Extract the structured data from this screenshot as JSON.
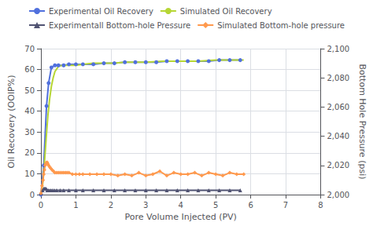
{
  "chart_data": {
    "type": "line",
    "xlabel": "Pore Volume Injected (PV)",
    "ylabel": "Oil Recovery (OOIP%)",
    "y2label": "Bottom Hole Pressure (psi)",
    "xlim": [
      0,
      8
    ],
    "ylim": [
      0,
      70
    ],
    "y2lim": [
      2000,
      2100
    ],
    "xticks": [
      0,
      1,
      2,
      3,
      4,
      5,
      6,
      7,
      8
    ],
    "yticks": [
      0,
      10,
      20,
      30,
      40,
      50,
      60,
      70
    ],
    "y2ticks": [
      2000,
      2020,
      2040,
      2060,
      2080,
      2100
    ],
    "grid": true,
    "legend": "top",
    "series": [
      {
        "name": "Experimental Oil Recovery",
        "marker": "circle",
        "x": [
          0.0,
          0.08,
          0.16,
          0.22,
          0.3,
          0.4,
          0.5,
          0.65,
          0.8,
          1.0,
          1.2,
          1.5,
          1.8,
          2.1,
          2.4,
          2.7,
          3.0,
          3.3,
          3.6,
          3.9,
          4.2,
          4.5,
          4.8,
          5.1,
          5.4,
          5.7
        ],
        "values": [
          0.0,
          14.0,
          42.5,
          53.5,
          61.0,
          62.0,
          62.0,
          62.0,
          62.5,
          62.5,
          62.5,
          62.5,
          63.0,
          63.0,
          63.5,
          63.5,
          63.5,
          63.5,
          64.0,
          64.0,
          64.0,
          64.0,
          64.0,
          64.5,
          64.5,
          64.5
        ]
      },
      {
        "name": "Simulated Oil Recovery",
        "marker": "none",
        "x": [
          0.0,
          0.05,
          0.1,
          0.15,
          0.2,
          0.25,
          0.3,
          0.35,
          0.4,
          0.5,
          0.6,
          0.7,
          0.8,
          1.0,
          1.2,
          1.5,
          1.8,
          2.1,
          2.4,
          2.7,
          3.0,
          3.5,
          4.0,
          4.5,
          5.0,
          5.5,
          5.8
        ],
        "values": [
          0.0,
          5.0,
          15.0,
          27.0,
          38.0,
          46.0,
          52.0,
          56.0,
          59.0,
          61.5,
          62.0,
          62.0,
          62.0,
          62.0,
          62.5,
          63.0,
          63.0,
          63.0,
          63.5,
          63.5,
          63.5,
          64.0,
          64.0,
          64.0,
          64.5,
          64.5,
          64.5
        ]
      },
      {
        "name": "Experimentall Bottom-hole Pressure",
        "marker": "triangle",
        "axis": "y2",
        "x": [
          0.0,
          0.05,
          0.08,
          0.1,
          0.12,
          0.15,
          0.18,
          0.22,
          0.27,
          0.32,
          0.38,
          0.45,
          0.55,
          0.65,
          0.8,
          1.0,
          1.2,
          1.5,
          1.8,
          2.1,
          2.4,
          2.7,
          3.0,
          3.3,
          3.6,
          3.9,
          4.2,
          4.5,
          4.8,
          5.1,
          5.4,
          5.7
        ],
        "values": [
          2001,
          2003,
          2004,
          2004,
          2004,
          2004,
          2003,
          2003,
          2003,
          2003,
          2003,
          2003,
          2003,
          2003,
          2003,
          2003,
          2003,
          2003,
          2003,
          2003,
          2003,
          2003,
          2003,
          2003,
          2003,
          2003,
          2003,
          2003,
          2003,
          2003,
          2003,
          2003
        ]
      },
      {
        "name": "Simulated Bottom-hole pressure",
        "marker": "diamond",
        "axis": "y2",
        "x": [
          0.0,
          0.03,
          0.06,
          0.08,
          0.1,
          0.12,
          0.14,
          0.16,
          0.18,
          0.2,
          0.22,
          0.25,
          0.28,
          0.32,
          0.36,
          0.4,
          0.45,
          0.5,
          0.55,
          0.6,
          0.65,
          0.7,
          0.75,
          0.8,
          0.9,
          1.0,
          1.1,
          1.2,
          1.4,
          1.6,
          1.8,
          2.0,
          2.2,
          2.4,
          2.6,
          2.8,
          3.0,
          3.2,
          3.4,
          3.6,
          3.8,
          4.0,
          4.2,
          4.4,
          4.6,
          4.8,
          5.0,
          5.2,
          5.4,
          5.6,
          5.8
        ],
        "values": [
          2001,
          2006,
          2010,
          2014,
          2017,
          2020,
          2021,
          2022,
          2022,
          2021,
          2020,
          2019,
          2018,
          2017,
          2016,
          2015,
          2015,
          2015,
          2015,
          2015,
          2015,
          2015,
          2015,
          2015,
          2014,
          2014,
          2014,
          2014,
          2014,
          2014,
          2014,
          2014,
          2013,
          2014,
          2013,
          2015,
          2013,
          2014,
          2016,
          2013,
          2015,
          2014,
          2014,
          2015,
          2013,
          2015,
          2014,
          2013,
          2015,
          2014,
          2014
        ]
      }
    ]
  }
}
